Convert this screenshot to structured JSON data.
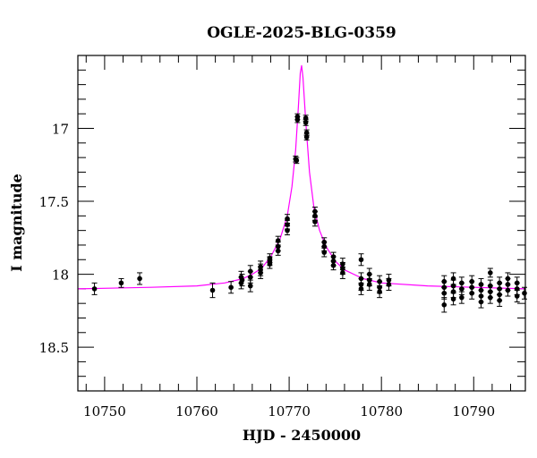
{
  "chart_data": {
    "type": "scatter",
    "title": "OGLE-2025-BLG-0359",
    "xlabel": "HJD - 2450000",
    "ylabel": "I magnitude",
    "xlim": [
      10747.1,
      10795.6
    ],
    "ylim": [
      18.8,
      16.5
    ],
    "y_inverted": true,
    "x_ticks": [
      10750,
      10760,
      10770,
      10780,
      10790
    ],
    "x_tick_labels": [
      "10750",
      "10760",
      "10770",
      "10780",
      "10790"
    ],
    "x_minor_step": 2,
    "y_ticks": [
      17,
      17.5,
      18,
      18.5
    ],
    "y_tick_labels": [
      "17",
      "17.5",
      "18",
      "18.5"
    ],
    "y_minor_step": 0.1,
    "grid": false,
    "colors": {
      "points": "#000000",
      "model": "#ff00ff"
    },
    "points": [
      [
        10748.9,
        18.1,
        0.04
      ],
      [
        10751.8,
        18.06,
        0.03
      ],
      [
        10753.8,
        18.03,
        0.04
      ],
      [
        10761.7,
        18.11,
        0.05
      ],
      [
        10763.7,
        18.09,
        0.04
      ],
      [
        10764.8,
        18.02,
        0.04
      ],
      [
        10764.8,
        18.06,
        0.04
      ],
      [
        10764.9,
        18.04,
        0.04
      ],
      [
        10765.8,
        17.98,
        0.04
      ],
      [
        10765.8,
        18.02,
        0.04
      ],
      [
        10765.8,
        18.08,
        0.04
      ],
      [
        10766.9,
        17.95,
        0.04
      ],
      [
        10766.9,
        17.99,
        0.04
      ],
      [
        10766.9,
        17.97,
        0.04
      ],
      [
        10767.9,
        17.89,
        0.03
      ],
      [
        10767.9,
        17.93,
        0.03
      ],
      [
        10767.9,
        17.91,
        0.03
      ],
      [
        10768.8,
        17.77,
        0.03
      ],
      [
        10768.8,
        17.81,
        0.03
      ],
      [
        10768.8,
        17.84,
        0.03
      ],
      [
        10769.8,
        17.62,
        0.03
      ],
      [
        10769.8,
        17.66,
        0.03
      ],
      [
        10769.8,
        17.7,
        0.03
      ],
      [
        10770.7,
        17.21,
        0.02
      ],
      [
        10770.8,
        17.22,
        0.02
      ],
      [
        10770.9,
        16.92,
        0.02
      ],
      [
        10770.9,
        16.94,
        0.02
      ],
      [
        10771.8,
        16.93,
        0.02
      ],
      [
        10771.8,
        16.96,
        0.02
      ],
      [
        10771.9,
        17.03,
        0.02
      ],
      [
        10771.9,
        17.06,
        0.02
      ],
      [
        10772.8,
        17.57,
        0.03
      ],
      [
        10772.8,
        17.6,
        0.03
      ],
      [
        10772.8,
        17.64,
        0.03
      ],
      [
        10773.8,
        17.78,
        0.03
      ],
      [
        10773.8,
        17.81,
        0.03
      ],
      [
        10773.8,
        17.85,
        0.03
      ],
      [
        10774.8,
        17.88,
        0.03
      ],
      [
        10774.8,
        17.91,
        0.03
      ],
      [
        10774.8,
        17.94,
        0.03
      ],
      [
        10775.8,
        17.93,
        0.04
      ],
      [
        10775.8,
        17.96,
        0.04
      ],
      [
        10775.8,
        17.99,
        0.04
      ],
      [
        10777.8,
        17.9,
        0.04
      ],
      [
        10777.8,
        18.03,
        0.04
      ],
      [
        10777.8,
        18.07,
        0.04
      ],
      [
        10777.8,
        18.1,
        0.04
      ],
      [
        10778.7,
        18.0,
        0.04
      ],
      [
        10778.7,
        18.04,
        0.04
      ],
      [
        10778.7,
        18.07,
        0.04
      ],
      [
        10779.8,
        18.05,
        0.04
      ],
      [
        10779.8,
        18.09,
        0.04
      ],
      [
        10779.8,
        18.12,
        0.04
      ],
      [
        10780.8,
        18.04,
        0.04
      ],
      [
        10780.8,
        18.07,
        0.04
      ],
      [
        10786.8,
        18.05,
        0.04
      ],
      [
        10786.8,
        18.09,
        0.04
      ],
      [
        10786.8,
        18.13,
        0.04
      ],
      [
        10786.8,
        18.21,
        0.05
      ],
      [
        10787.8,
        18.03,
        0.04
      ],
      [
        10787.8,
        18.08,
        0.04
      ],
      [
        10787.8,
        18.12,
        0.04
      ],
      [
        10787.8,
        18.17,
        0.04
      ],
      [
        10788.7,
        18.06,
        0.04
      ],
      [
        10788.7,
        18.1,
        0.04
      ],
      [
        10788.7,
        18.16,
        0.04
      ],
      [
        10789.8,
        18.05,
        0.04
      ],
      [
        10789.8,
        18.09,
        0.04
      ],
      [
        10789.8,
        18.13,
        0.04
      ],
      [
        10790.8,
        18.07,
        0.04
      ],
      [
        10790.8,
        18.11,
        0.04
      ],
      [
        10790.8,
        18.15,
        0.04
      ],
      [
        10790.8,
        18.19,
        0.04
      ],
      [
        10791.8,
        17.99,
        0.03
      ],
      [
        10791.8,
        18.08,
        0.04
      ],
      [
        10791.8,
        18.12,
        0.04
      ],
      [
        10791.8,
        18.16,
        0.04
      ],
      [
        10792.8,
        18.06,
        0.04
      ],
      [
        10792.8,
        18.1,
        0.04
      ],
      [
        10792.8,
        18.14,
        0.04
      ],
      [
        10792.8,
        18.18,
        0.04
      ],
      [
        10793.7,
        18.03,
        0.04
      ],
      [
        10793.7,
        18.07,
        0.04
      ],
      [
        10793.7,
        18.11,
        0.04
      ],
      [
        10794.7,
        18.06,
        0.04
      ],
      [
        10794.7,
        18.1,
        0.04
      ],
      [
        10794.7,
        18.15,
        0.04
      ],
      [
        10795.5,
        18.13,
        0.04
      ]
    ],
    "model": {
      "x": [
        10747.1,
        10755,
        10760,
        10763,
        10765,
        10766,
        10767,
        10768,
        10769,
        10769.8,
        10770.3,
        10770.7,
        10771.0,
        10771.2,
        10771.35,
        10771.5,
        10771.8,
        10772.2,
        10772.7,
        10773.3,
        10774,
        10775,
        10776,
        10778,
        10780,
        10785,
        10790,
        10795.6
      ],
      "y": [
        18.1,
        18.09,
        18.08,
        18.06,
        18.03,
        18.0,
        17.96,
        17.88,
        17.76,
        17.6,
        17.4,
        17.15,
        16.85,
        16.62,
        16.57,
        16.65,
        16.95,
        17.3,
        17.55,
        17.7,
        17.81,
        17.91,
        17.97,
        18.03,
        18.06,
        18.08,
        18.09,
        18.1
      ]
    }
  }
}
